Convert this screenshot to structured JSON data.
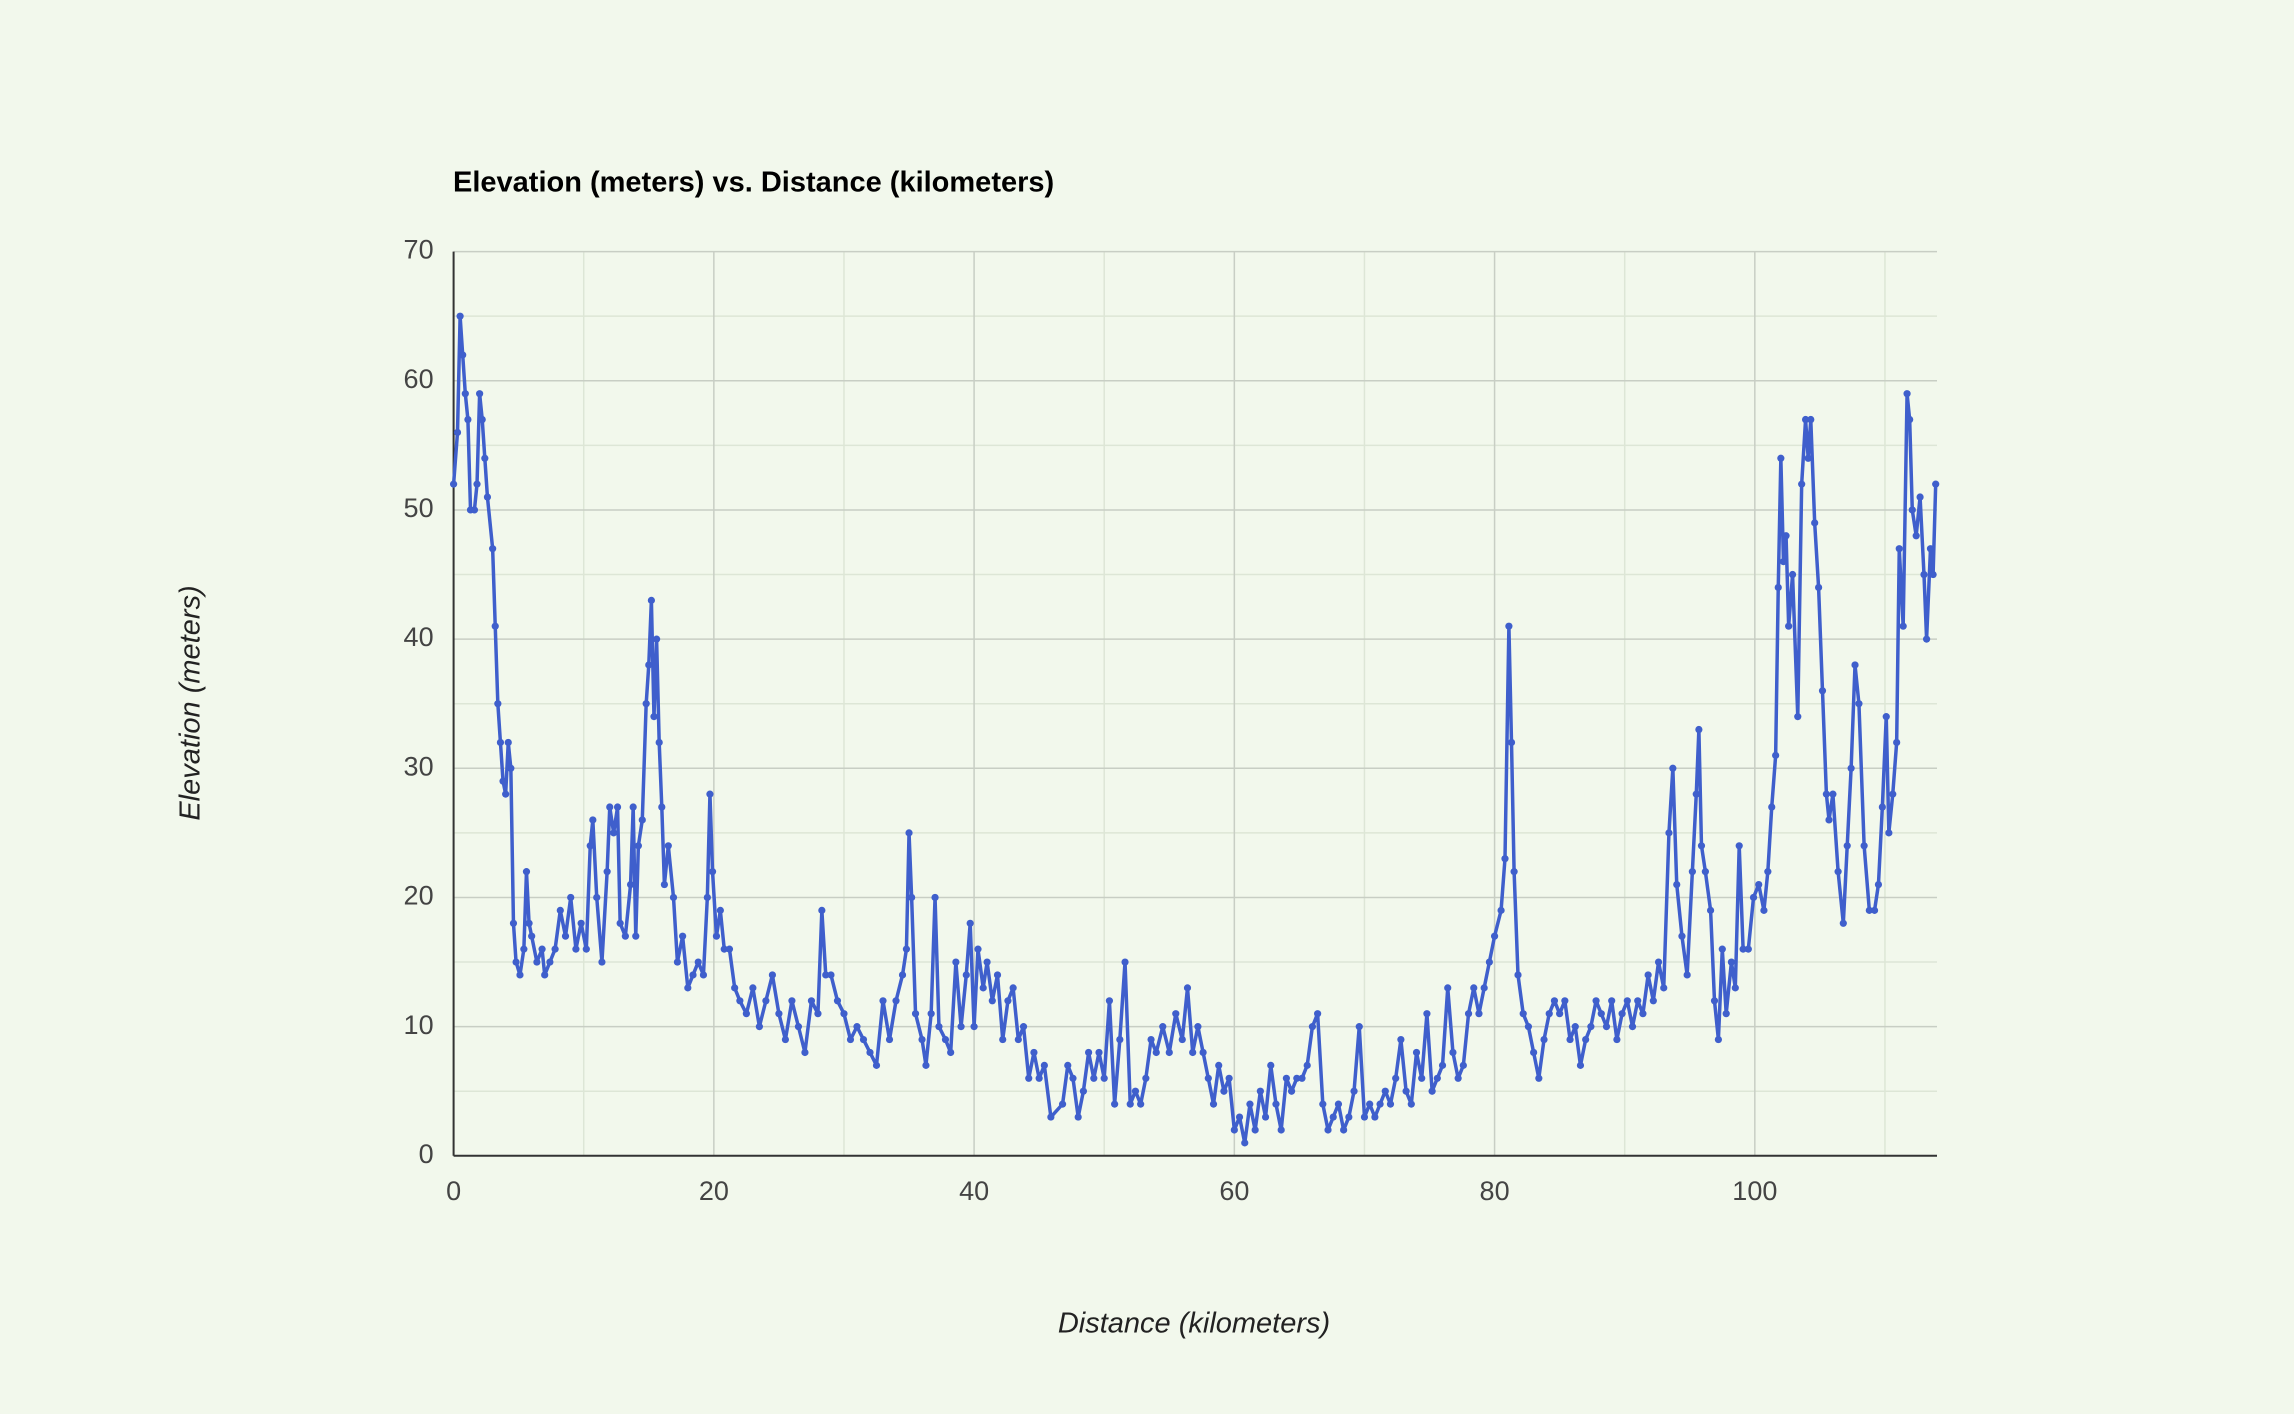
{
  "chart_data": {
    "type": "line",
    "title": "Elevation (meters) vs. Distance (kilometers)",
    "x_label": "Distance (kilometers)",
    "y_label": "Elevation (meters)",
    "color": "#3f5fcc",
    "markers": true,
    "grid": true,
    "minor_grid": true,
    "xlim": [
      0,
      114
    ],
    "ylim": [
      0,
      70
    ],
    "xticks": [
      0,
      20,
      40,
      60,
      80,
      100
    ],
    "yticks": [
      0,
      10,
      20,
      30,
      40,
      50,
      60,
      70
    ],
    "x": [
      0,
      0.3,
      0.5,
      0.7,
      0.9,
      1.1,
      1.3,
      1.6,
      1.8,
      2,
      2.2,
      2.4,
      2.6,
      3,
      3.2,
      3.4,
      3.6,
      3.8,
      4,
      4.2,
      4.4,
      4.6,
      4.8,
      5.1,
      5.4,
      5.6,
      5.8,
      6,
      6.4,
      6.8,
      7,
      7.4,
      7.8,
      8.2,
      8.6,
      9,
      9.4,
      9.8,
      10.2,
      10.5,
      10.7,
      11,
      11.4,
      11.8,
      12,
      12.3,
      12.6,
      12.8,
      13.2,
      13.6,
      13.8,
      14,
      14.2,
      14.5,
      14.8,
      15,
      15.2,
      15.4,
      15.6,
      15.8,
      16,
      16.2,
      16.5,
      16.9,
      17.2,
      17.6,
      18,
      18.4,
      18.8,
      19.2,
      19.5,
      19.7,
      19.9,
      20.2,
      20.5,
      20.8,
      21.2,
      21.6,
      22,
      22.5,
      23,
      23.5,
      24,
      24.5,
      25,
      25.5,
      26,
      26.5,
      27,
      27.5,
      28,
      28.3,
      28.6,
      29,
      29.5,
      30,
      30.5,
      31,
      31.5,
      32,
      32.5,
      33,
      33.5,
      34,
      34.5,
      34.8,
      35,
      35.2,
      35.5,
      36,
      36.3,
      36.7,
      37,
      37.3,
      37.8,
      38.2,
      38.6,
      39,
      39.4,
      39.7,
      40,
      40.3,
      40.7,
      41,
      41.4,
      41.8,
      42.2,
      42.6,
      43,
      43.4,
      43.8,
      44.2,
      44.6,
      45,
      45.4,
      45.9,
      46.8,
      47.2,
      47.6,
      48,
      48.4,
      48.8,
      49.2,
      49.6,
      50,
      50.4,
      50.8,
      51.2,
      51.6,
      52,
      52.4,
      52.8,
      53.2,
      53.6,
      54,
      54.5,
      55,
      55.5,
      56,
      56.4,
      56.8,
      57.2,
      57.6,
      58,
      58.4,
      58.8,
      59.2,
      59.6,
      60,
      60.4,
      60.8,
      61.2,
      61.6,
      62,
      62.4,
      62.8,
      63.2,
      63.6,
      64,
      64.4,
      64.8,
      65.2,
      65.6,
      66,
      66.4,
      66.8,
      67.2,
      67.6,
      68,
      68.4,
      68.8,
      69.2,
      69.6,
      70,
      70.4,
      70.8,
      71.2,
      71.6,
      72,
      72.4,
      72.8,
      73.2,
      73.6,
      74,
      74.4,
      74.8,
      75.2,
      75.6,
      76,
      76.4,
      76.8,
      77.2,
      77.6,
      78,
      78.4,
      78.8,
      79.2,
      79.6,
      80,
      80.5,
      80.8,
      81.1,
      81.3,
      81.5,
      81.8,
      82.2,
      82.6,
      83,
      83.4,
      83.8,
      84.2,
      84.6,
      85,
      85.4,
      85.8,
      86.2,
      86.6,
      87,
      87.4,
      87.8,
      88.2,
      88.6,
      89,
      89.4,
      89.8,
      90.2,
      90.6,
      91,
      91.4,
      91.8,
      92.2,
      92.6,
      93,
      93.4,
      93.7,
      94,
      94.4,
      94.8,
      95.2,
      95.5,
      95.7,
      95.9,
      96.2,
      96.6,
      96.9,
      97.2,
      97.5,
      97.8,
      98.2,
      98.5,
      98.8,
      99.1,
      99.5,
      99.9,
      100.3,
      100.7,
      101,
      101.3,
      101.6,
      101.8,
      102,
      102.2,
      102.4,
      102.6,
      102.9,
      103.3,
      103.6,
      103.9,
      104.1,
      104.3,
      104.6,
      104.9,
      105.2,
      105.5,
      105.7,
      106,
      106.4,
      106.8,
      107.1,
      107.4,
      107.7,
      108,
      108.4,
      108.8,
      109.2,
      109.5,
      109.8,
      110.1,
      110.3,
      110.6,
      110.9,
      111.1,
      111.4,
      111.7,
      111.9,
      112.1,
      112.4,
      112.7,
      113,
      113.2,
      113.5,
      113.7,
      113.9
    ],
    "values": [
      52,
      56,
      65,
      62,
      59,
      57,
      50,
      50,
      52,
      59,
      57,
      54,
      51,
      47,
      41,
      35,
      32,
      29,
      28,
      32,
      30,
      18,
      15,
      14,
      16,
      22,
      18,
      17,
      15,
      16,
      14,
      15,
      16,
      19,
      17,
      20,
      16,
      18,
      16,
      24,
      26,
      20,
      15,
      22,
      27,
      25,
      27,
      18,
      17,
      21,
      27,
      17,
      24,
      26,
      35,
      38,
      43,
      34,
      40,
      32,
      27,
      21,
      24,
      20,
      15,
      17,
      13,
      14,
      15,
      14,
      20,
      28,
      22,
      17,
      19,
      16,
      16,
      13,
      12,
      11,
      13,
      10,
      12,
      14,
      11,
      9,
      12,
      10,
      8,
      12,
      11,
      19,
      14,
      14,
      12,
      11,
      9,
      10,
      9,
      8,
      7,
      12,
      9,
      12,
      14,
      16,
      25,
      20,
      11,
      9,
      7,
      11,
      20,
      10,
      9,
      8,
      15,
      10,
      14,
      18,
      10,
      16,
      13,
      15,
      12,
      14,
      9,
      12,
      13,
      9,
      10,
      6,
      8,
      6,
      7,
      3,
      4,
      7,
      6,
      3,
      5,
      8,
      6,
      8,
      6,
      12,
      4,
      9,
      15,
      4,
      5,
      4,
      6,
      9,
      8,
      10,
      8,
      11,
      9,
      13,
      8,
      10,
      8,
      6,
      4,
      7,
      5,
      6,
      2,
      3,
      1,
      4,
      2,
      5,
      3,
      7,
      4,
      2,
      6,
      5,
      6,
      6,
      7,
      10,
      11,
      4,
      2,
      3,
      4,
      2,
      3,
      5,
      10,
      3,
      4,
      3,
      4,
      5,
      4,
      6,
      9,
      5,
      4,
      8,
      6,
      11,
      5,
      6,
      7,
      13,
      8,
      6,
      7,
      11,
      13,
      11,
      13,
      15,
      17,
      19,
      23,
      41,
      32,
      22,
      14,
      11,
      10,
      8,
      6,
      9,
      11,
      12,
      11,
      12,
      9,
      10,
      7,
      9,
      10,
      12,
      11,
      10,
      12,
      9,
      11,
      12,
      10,
      12,
      11,
      14,
      12,
      15,
      13,
      25,
      30,
      21,
      17,
      14,
      22,
      28,
      33,
      24,
      22,
      19,
      12,
      9,
      16,
      11,
      15,
      13,
      24,
      16,
      16,
      20,
      21,
      19,
      22,
      27,
      31,
      44,
      54,
      46,
      48,
      41,
      45,
      34,
      52,
      57,
      54,
      57,
      49,
      44,
      36,
      28,
      26,
      28,
      22,
      18,
      24,
      30,
      38,
      35,
      24,
      19,
      19,
      21,
      27,
      34,
      25,
      28,
      32,
      47,
      41,
      59,
      57,
      50,
      48,
      51,
      45,
      40,
      47,
      45,
      52
    ]
  }
}
